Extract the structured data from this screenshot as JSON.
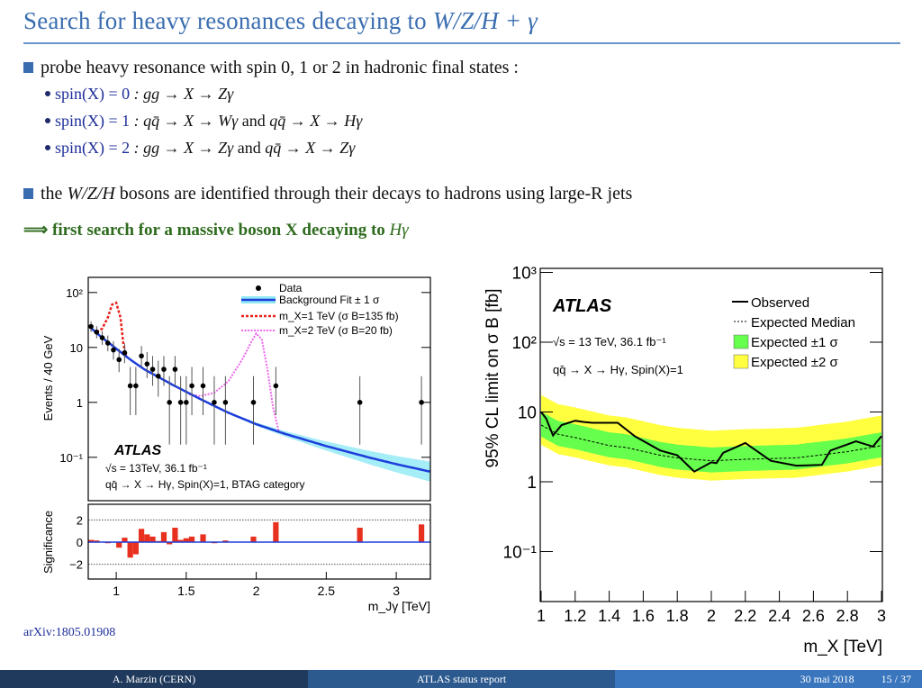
{
  "title": {
    "text": "Search for heavy resonances decaying to ",
    "math": "W/Z/H + γ"
  },
  "bullets": [
    {
      "text": "probe heavy resonance with spin 0, 1 or 2 in hadronic final states :"
    },
    {
      "text_pre": "the ",
      "math": "W/Z/H",
      "text_post": " bosons are identified through their decays to hadrons using large-R jets"
    }
  ],
  "subbullets": [
    {
      "label": "spin(X) = 0",
      "expr": ": gg → X → Zγ"
    },
    {
      "label": "spin(X) = 1",
      "expr": ": qq̄ → X → Wγ",
      "and": " and ",
      "expr2": "qq̄ → X → Hγ"
    },
    {
      "label": "spin(X) = 2",
      "expr": ": gg → X → Zγ",
      "and": " and ",
      "expr2": "qq̄ → X → Zγ"
    }
  ],
  "conclusion": {
    "arrow": "⟹",
    "text": " first search for a massive boson X decaying to ",
    "math": "Hγ"
  },
  "arxiv": "arXiv:1805.01908",
  "footer": {
    "author": "A. Marzin  (CERN)",
    "talk": "ATLAS status report",
    "date": "30 mai 2018",
    "page": "15 / 37"
  },
  "chart_data": [
    {
      "type": "scatter",
      "ylabel": "Events / 40 GeV",
      "xlabel": "m_Jγ [TeV]",
      "sig_ylabel": "Significance",
      "yscale": "log",
      "ylim": [
        0.016,
        200
      ],
      "xlim": [
        0.8,
        3.24
      ],
      "yticks": [
        "10²",
        "10",
        "1",
        "10⁻¹"
      ],
      "xticks": [
        "1",
        "1.5",
        "2",
        "2.5",
        "3"
      ],
      "sig_yticks": [
        "2",
        "0",
        "−2"
      ],
      "legend": [
        "Data",
        "Background Fit ± 1 σ",
        "m_X=1 TeV (σ B=135 fb)",
        "m_X=2 TeV (σ B=20 fb)"
      ],
      "annotations": [
        "ATLAS",
        "√s = 13TeV, 36.1 fb⁻¹",
        "qq̄ → X → Hγ, Spin(X)=1, BTAG category"
      ],
      "data": {
        "x": [
          0.82,
          0.86,
          0.9,
          0.94,
          0.98,
          1.02,
          1.06,
          1.1,
          1.14,
          1.18,
          1.22,
          1.26,
          1.3,
          1.34,
          1.38,
          1.42,
          1.46,
          1.5,
          1.54,
          1.62,
          1.7,
          1.78,
          1.98,
          2.14,
          2.74,
          3.18
        ],
        "y": [
          24,
          19,
          15,
          12,
          9,
          6,
          8,
          2,
          2,
          7,
          5,
          4,
          3,
          4,
          1,
          4,
          1,
          1,
          2,
          2,
          1,
          1,
          1,
          2,
          1,
          1
        ]
      },
      "background": {
        "x": [
          0.8,
          0.9,
          1.0,
          1.1,
          1.2,
          1.4,
          1.6,
          1.8,
          2.0,
          2.2,
          2.5,
          2.8,
          3.0,
          3.24
        ],
        "y": [
          25,
          15,
          9.5,
          6,
          4,
          2.1,
          1.15,
          0.65,
          0.4,
          0.27,
          0.16,
          0.1,
          0.075,
          0.055
        ]
      },
      "signal_1tev": {
        "x": [
          0.86,
          0.9,
          0.94,
          0.97,
          1.0,
          1.03,
          1.05,
          1.07
        ],
        "y": [
          19,
          22,
          35,
          60,
          65,
          35,
          12,
          7
        ]
      },
      "signal_2tev": {
        "x": [
          1.52,
          1.6,
          1.7,
          1.8,
          1.9,
          1.96,
          2.0,
          2.04,
          2.08,
          2.12,
          2.16
        ],
        "y": [
          1.4,
          1.3,
          1.5,
          2.4,
          6,
          12,
          18,
          14,
          4,
          0.8,
          0.3
        ]
      },
      "significance": {
        "x": [
          0.82,
          0.86,
          0.94,
          1.02,
          1.06,
          1.1,
          1.14,
          1.18,
          1.22,
          1.26,
          1.3,
          1.34,
          1.38,
          1.42,
          1.46,
          1.5,
          1.54,
          1.62,
          1.7,
          1.78,
          1.98,
          2.14,
          2.74,
          3.18
        ],
        "y": [
          0.2,
          0.15,
          -0.1,
          -0.5,
          0.4,
          -1.4,
          -1.1,
          1.2,
          0.7,
          0.5,
          0.1,
          0.9,
          -0.2,
          1.3,
          0.2,
          0.35,
          0.5,
          0.7,
          -0.1,
          0.15,
          0.5,
          1.8,
          1.3,
          1.6
        ]
      }
    },
    {
      "type": "line",
      "ylabel": "95% CL limit on σ B [fb]",
      "xlabel": "m_X [TeV]",
      "yscale": "log",
      "ylim": [
        0.019,
        1000
      ],
      "xlim": [
        1,
        3
      ],
      "yticks": [
        "10³",
        "10²",
        "10",
        "1",
        "10⁻¹"
      ],
      "xticks": [
        "1",
        "1.2",
        "1.4",
        "1.6",
        "1.8",
        "2",
        "2.2",
        "2.4",
        "2.6",
        "2.8",
        "3"
      ],
      "legend": [
        "Observed",
        "Expected Median",
        "Expected ±1 σ",
        "Expected ±2 σ"
      ],
      "annotations": [
        "ATLAS",
        "√s = 13 TeV, 36.1 fb⁻¹",
        "qq̄ → X → Hγ, Spin(X)=1"
      ],
      "observed": {
        "x": [
          1.0,
          1.03,
          1.07,
          1.12,
          1.2,
          1.25,
          1.3,
          1.45,
          1.55,
          1.7,
          1.8,
          1.9,
          2.0,
          2.03,
          2.07,
          2.2,
          2.35,
          2.5,
          2.65,
          2.7,
          2.85,
          2.95,
          3.0
        ],
        "y": [
          10,
          8,
          4.6,
          6.5,
          7.5,
          7.2,
          7,
          7,
          4.5,
          2.8,
          2.4,
          1.4,
          1.9,
          1.85,
          2.6,
          3.6,
          2.0,
          1.7,
          1.75,
          2.8,
          3.8,
          3.2,
          4.5
        ]
      },
      "expected": {
        "x": [
          1.0,
          1.1,
          1.2,
          1.4,
          1.5,
          1.7,
          1.8,
          2.0,
          2.2,
          2.5,
          2.8,
          3.0
        ],
        "y": [
          6.5,
          4.8,
          4.3,
          3.3,
          3.1,
          2.4,
          2.2,
          2.0,
          2.1,
          2.2,
          2.7,
          3.3
        ]
      },
      "band_1sigma_factor": [
        0.68,
        1.55
      ],
      "band_2sigma_factor": [
        0.52,
        2.7
      ],
      "colors": {
        "band1": "#66ff4d",
        "band2": "#ffff40"
      }
    }
  ]
}
